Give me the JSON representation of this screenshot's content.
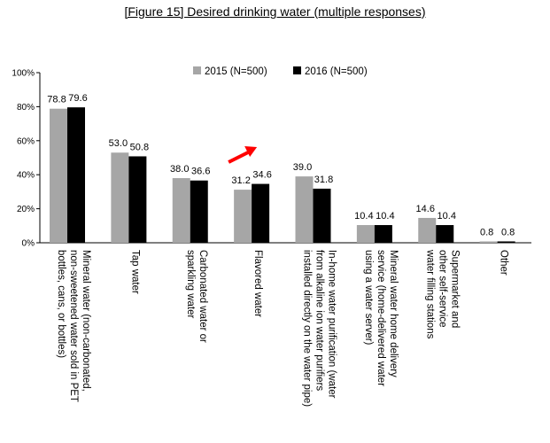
{
  "chart_data": {
    "type": "bar",
    "title": "[Figure 15] Desired drinking water (multiple responses)",
    "xlabel": "",
    "ylabel": "",
    "ylim": [
      0,
      100
    ],
    "yticks": [
      "0%",
      "20%",
      "40%",
      "60%",
      "80%",
      "100%"
    ],
    "grid": false,
    "legend_position": "top-center",
    "categories": [
      [
        "Mineral water (non-carbonated,",
        "non-sweetened water sold in PET",
        "bottles, cans, or bottles)"
      ],
      [
        "Tap water"
      ],
      [
        "Carbonated water or",
        "sparkling water"
      ],
      [
        "Flavored water"
      ],
      [
        "In-home water purification (water",
        "from alkaline ion water purifiers",
        "installed directly on the water pipe)"
      ],
      [
        "Mineral water home delivery",
        "service (home-delivered water",
        "using a water server)"
      ],
      [
        "Supermarket and",
        "other self-service",
        "water filling stations"
      ],
      [
        "Other"
      ]
    ],
    "series": [
      {
        "name": "2015 (N=500)",
        "color": "#a6a6a6",
        "values": [
          78.8,
          53.0,
          38.0,
          31.2,
          39.0,
          10.4,
          14.6,
          0.8
        ],
        "labels": [
          "78.8",
          "53.0",
          "38.0",
          "31.2",
          "39.0",
          "10.4",
          "14.6",
          "0.8"
        ]
      },
      {
        "name": "2016 (N=500)",
        "color": "#000000",
        "values": [
          79.6,
          50.8,
          36.6,
          34.6,
          31.8,
          10.4,
          10.4,
          0.8
        ],
        "labels": [
          "79.6",
          "50.8",
          "36.6",
          "34.6",
          "31.8",
          "10.4",
          "10.4",
          "0.8"
        ]
      }
    ],
    "annotation": {
      "type": "arrow",
      "color": "#ff0000",
      "category_index": 3
    }
  }
}
